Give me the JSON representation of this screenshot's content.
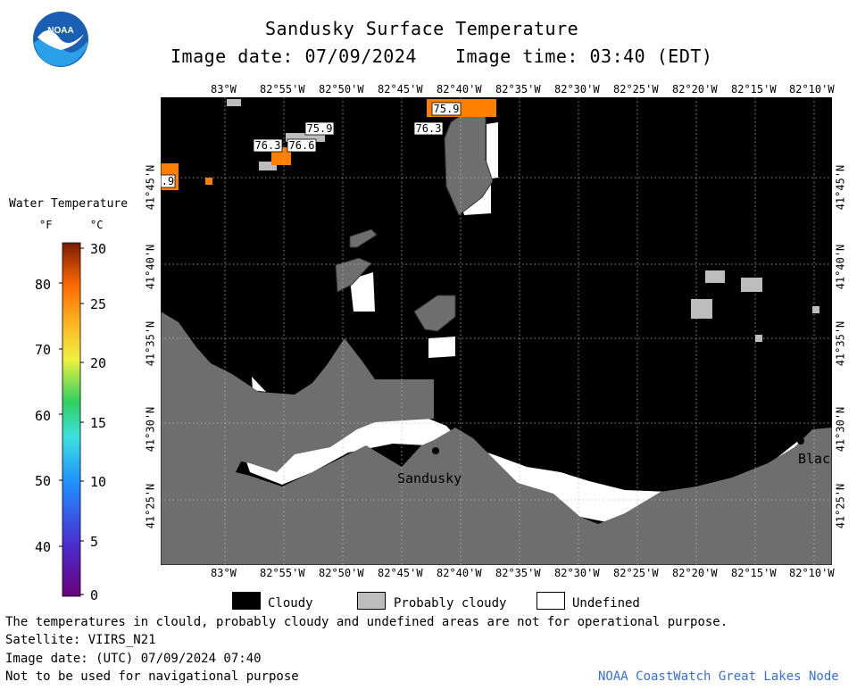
{
  "header": {
    "title": "Sandusky Surface Temperature",
    "image_date": "Image date: 07/09/2024",
    "image_time": "Image time: 03:40 (EDT)"
  },
  "logo": {
    "text": "NOAA"
  },
  "colorbar": {
    "title": "Water Temperature",
    "unit_f": "°F",
    "unit_c": "°C",
    "f_ticks": [
      "80",
      "70",
      "60",
      "50",
      "40"
    ],
    "c_ticks": [
      "30",
      "25",
      "20",
      "15",
      "10",
      "5",
      "0"
    ]
  },
  "map": {
    "lon_labels": [
      "83°W",
      "82°55'W",
      "82°50'W",
      "82°45'W",
      "82°40'W",
      "82°35'W",
      "82°30'W",
      "82°25'W",
      "82°20'W",
      "82°15'W",
      "82°10'W"
    ],
    "lat_labels": [
      "41°45'N",
      "41°40'N",
      "41°35'N",
      "41°30'N",
      "41°25'N"
    ],
    "temp_labels": [
      "75.9",
      "76.3",
      "75.9",
      "76.3",
      "76.6",
      ".9"
    ],
    "place_labels": [
      "Sandusky",
      "Blac"
    ]
  },
  "legend": {
    "cloudy": "Cloudy",
    "probably_cloudy": "Probably cloudy",
    "undefined": "Undefined"
  },
  "footer": {
    "disclaimer": "The temperatures in clould, probably cloudy and undefined areas are not for operational purpose.",
    "satellite": "Satellite: VIIRS_N21",
    "utc_date": "Image date: (UTC) 07/09/2024  07:40",
    "nav_warning": "Not to be used for navigational purpose",
    "credit": "NOAA CoastWatch Great Lakes Node"
  },
  "colors": {
    "cloudy": "#000000",
    "probably_cloudy": "#bdbdbd",
    "land": "#6e6e6e",
    "undefined": "#ffffff",
    "warm": "#ff7f00",
    "credit": "#3a6fd8"
  }
}
